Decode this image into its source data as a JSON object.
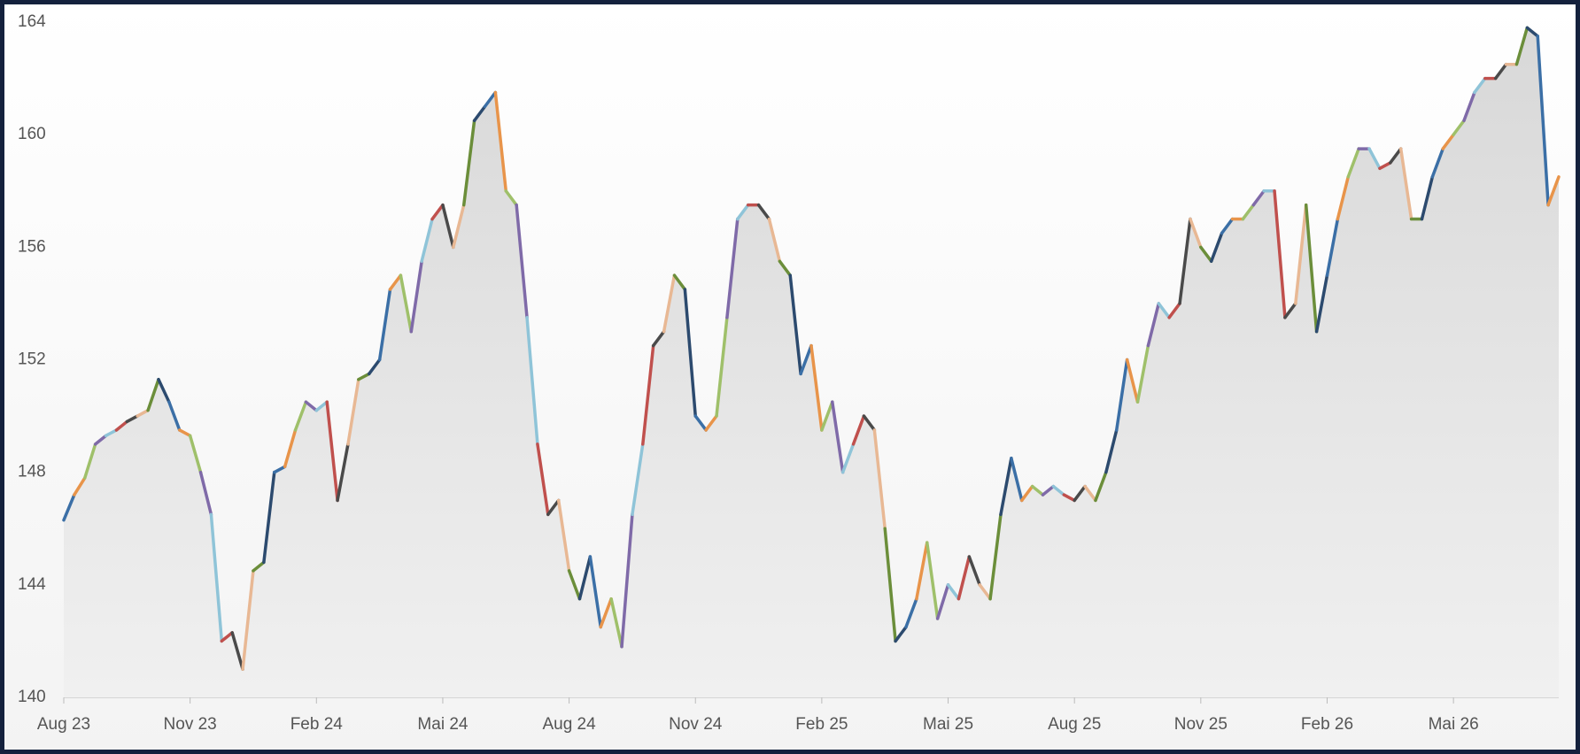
{
  "chart_data": {
    "type": "line",
    "categories": [
      "Aug 23",
      null,
      null,
      null,
      null,
      null,
      null,
      null,
      null,
      null,
      null,
      null,
      "Nov 23",
      null,
      null,
      null,
      null,
      null,
      null,
      null,
      null,
      null,
      null,
      null,
      "Feb 24",
      null,
      null,
      null,
      null,
      null,
      null,
      null,
      null,
      null,
      null,
      null,
      "Mai 24",
      null,
      null,
      null,
      null,
      null,
      null,
      null,
      null,
      null,
      null,
      null,
      "Aug 24",
      null,
      null,
      null,
      null,
      null,
      null,
      null,
      null,
      null,
      null,
      null,
      "Nov 24",
      null,
      null,
      null,
      null,
      null,
      null,
      null,
      null,
      null,
      null,
      null,
      "Feb 25",
      null,
      null,
      null,
      null,
      null,
      null,
      null,
      null,
      null,
      null,
      null,
      "Mai 25",
      null,
      null,
      null,
      null,
      null,
      null,
      null,
      null,
      null,
      null,
      null,
      "Aug 25",
      null,
      null,
      null,
      null,
      null,
      null,
      null,
      null,
      null,
      null,
      null,
      "Nov 25",
      null,
      null,
      null,
      null,
      null,
      null,
      null,
      null,
      null,
      null,
      null,
      "Feb 26",
      null,
      null,
      null,
      null,
      null,
      null,
      null,
      null,
      null,
      null,
      null,
      "Mai 26",
      null,
      null,
      null,
      null,
      null,
      null,
      null,
      null,
      null,
      null
    ],
    "values": [
      146.3,
      147.2,
      147.8,
      149,
      149.3,
      149.5,
      149.8,
      150,
      150.2,
      151.3,
      150.5,
      149.5,
      149.3,
      148,
      146.5,
      142,
      142.3,
      141,
      144.5,
      144.8,
      148,
      148.2,
      149.5,
      150.5,
      150.2,
      150.5,
      147,
      149,
      151.3,
      151.5,
      152,
      154.5,
      155,
      153,
      155.5,
      157,
      157.5,
      156,
      157.5,
      160.5,
      161,
      161.5,
      158,
      157.5,
      153.5,
      149,
      146.5,
      147,
      144.5,
      143.5,
      145,
      142.5,
      143.5,
      141.8,
      146.5,
      149,
      152.5,
      153,
      155,
      154.5,
      150,
      149.5,
      150,
      153.5,
      157,
      157.5,
      157.5,
      157,
      155.5,
      155,
      151.5,
      152.5,
      149.5,
      150.5,
      148,
      149,
      150,
      149.5,
      146,
      142,
      142.5,
      143.5,
      145.5,
      142.8,
      144,
      143.5,
      145,
      144,
      143.5,
      146.5,
      148.5,
      147,
      147.5,
      147.2,
      147.5,
      147.2,
      147,
      147.5,
      147,
      148,
      149.5,
      152,
      150.5,
      152.5,
      154,
      153.5,
      154,
      157,
      156,
      155.5,
      156.5,
      157,
      157,
      157.5,
      158,
      158,
      153.5,
      154,
      157.5,
      153,
      155,
      157,
      158.5,
      159.5,
      159.5,
      158.8,
      159,
      159.5,
      157,
      157,
      158.5,
      159.5,
      160,
      160.5,
      161.5,
      162,
      162,
      162.5,
      162.5,
      163.8,
      163.5,
      157.5,
      158.5
    ],
    "segment_colors": [
      "#3b6fa6",
      "#e8944a",
      "#9fc06a",
      "#7f6aa8",
      "#8fc4d8",
      "#c0504d",
      "#4a4a4a",
      "#e8b894",
      "#6b8e3a",
      "#2c4a6e"
    ],
    "ylim": [
      140,
      164
    ],
    "yticks": [
      140,
      144,
      148,
      152,
      156,
      160,
      164
    ],
    "grid": false
  }
}
